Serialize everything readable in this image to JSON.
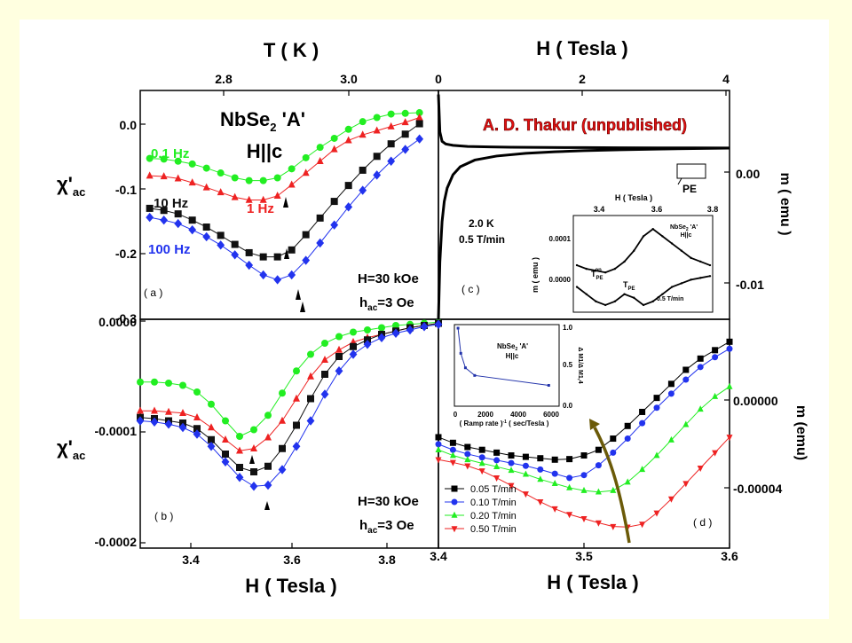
{
  "page": {
    "background": "#ffffe0",
    "frame_color": "#ffffff"
  },
  "chart_data": [
    {
      "panel": "a",
      "type": "scatter",
      "x_top_label": "T ( K )",
      "x_top_ticks": [
        "2.8",
        "3.0"
      ],
      "ylabel": "χ'ac",
      "y_ticks": [
        "0.0",
        "-0.1",
        "-0.2",
        "-0.3"
      ],
      "ylim": [
        -0.3,
        0.03
      ],
      "xlim": [
        3.3,
        3.93
      ],
      "title_main": "NbSe2 'A'",
      "title_sub": "H||c",
      "annotation_field": "H=30 kOe",
      "annotation_hac": "hac=3 Oe",
      "panel_label": "( a )",
      "series": [
        {
          "name": "0.1 Hz",
          "color": "#22ee22",
          "marker": "circle",
          "x": [
            3.32,
            3.35,
            3.38,
            3.41,
            3.44,
            3.47,
            3.5,
            3.53,
            3.56,
            3.59,
            3.62,
            3.65,
            3.68,
            3.71,
            3.74,
            3.77,
            3.8,
            3.83,
            3.86,
            3.89
          ],
          "y": [
            -0.068,
            -0.069,
            -0.072,
            -0.076,
            -0.082,
            -0.089,
            -0.096,
            -0.1,
            -0.1,
            -0.096,
            -0.083,
            -0.067,
            -0.052,
            -0.039,
            -0.026,
            -0.015,
            -0.009,
            -0.004,
            -0.003,
            -0.002
          ]
        },
        {
          "name": "1 Hz",
          "color": "#ee2222",
          "marker": "triangle",
          "x": [
            3.32,
            3.35,
            3.38,
            3.41,
            3.44,
            3.47,
            3.5,
            3.53,
            3.56,
            3.59,
            3.62,
            3.65,
            3.68,
            3.71,
            3.74,
            3.77,
            3.8,
            3.83,
            3.86,
            3.89
          ],
          "y": [
            -0.093,
            -0.094,
            -0.097,
            -0.103,
            -0.11,
            -0.117,
            -0.124,
            -0.128,
            -0.128,
            -0.122,
            -0.106,
            -0.089,
            -0.072,
            -0.055,
            -0.042,
            -0.034,
            -0.028,
            -0.022,
            -0.016,
            -0.009
          ]
        },
        {
          "name": "10 Hz",
          "color": "#111111",
          "marker": "square",
          "x": [
            3.32,
            3.35,
            3.38,
            3.41,
            3.44,
            3.47,
            3.5,
            3.53,
            3.56,
            3.59,
            3.62,
            3.65,
            3.68,
            3.71,
            3.74,
            3.77,
            3.8,
            3.83,
            3.86,
            3.89
          ],
          "y": [
            -0.14,
            -0.143,
            -0.148,
            -0.157,
            -0.167,
            -0.179,
            -0.192,
            -0.204,
            -0.21,
            -0.21,
            -0.2,
            -0.178,
            -0.154,
            -0.13,
            -0.107,
            -0.085,
            -0.065,
            -0.047,
            -0.033,
            -0.018
          ]
        },
        {
          "name": "100 Hz",
          "color": "#2233ee",
          "marker": "diamond",
          "x": [
            3.32,
            3.35,
            3.38,
            3.41,
            3.44,
            3.47,
            3.5,
            3.53,
            3.56,
            3.59,
            3.62,
            3.65,
            3.68,
            3.71,
            3.74,
            3.77,
            3.8,
            3.83,
            3.86,
            3.89
          ],
          "y": [
            -0.153,
            -0.157,
            -0.162,
            -0.171,
            -0.181,
            -0.193,
            -0.207,
            -0.222,
            -0.236,
            -0.243,
            -0.236,
            -0.215,
            -0.19,
            -0.164,
            -0.138,
            -0.114,
            -0.092,
            -0.072,
            -0.055,
            -0.04
          ]
        }
      ]
    },
    {
      "panel": "b",
      "type": "scatter",
      "xlabel": "H ( Tesla )",
      "x_ticks": [
        "3.4",
        "3.6",
        "3.8"
      ],
      "ylabel": "χ'ac",
      "y_ticks": [
        "0.0000",
        "-0.0001",
        "-0.0002"
      ],
      "ylim": [
        -0.0002,
        0.0
      ],
      "xlim": [
        3.3,
        3.93
      ],
      "annotation_field": "H=30 kOe",
      "annotation_hac": "hac=3 Oe",
      "panel_label": "( b )",
      "series": [
        {
          "name": "0.1 Hz",
          "color": "#22ee22",
          "marker": "circle",
          "x": [
            3.3,
            3.33,
            3.36,
            3.39,
            3.42,
            3.45,
            3.48,
            3.51,
            3.54,
            3.57,
            3.6,
            3.63,
            3.66,
            3.69,
            3.72,
            3.75,
            3.78,
            3.81,
            3.84,
            3.87,
            3.9,
            3.93
          ],
          "y": [
            -5.5e-05,
            -5.5e-05,
            -5.6e-05,
            -5.8e-05,
            -6.4e-05,
            -7.5e-05,
            -9e-05,
            -0.000104,
            -9.8e-05,
            -8.5e-05,
            -6.5e-05,
            -4.5e-05,
            -3e-05,
            -2e-05,
            -1.4e-05,
            -1e-05,
            -8e-06,
            -6e-06,
            -4e-06,
            -3e-06,
            -2e-06,
            -1e-06
          ]
        },
        {
          "name": "1 Hz",
          "color": "#ee2222",
          "marker": "triangle",
          "x": [
            3.3,
            3.33,
            3.36,
            3.39,
            3.42,
            3.45,
            3.48,
            3.51,
            3.54,
            3.57,
            3.6,
            3.63,
            3.66,
            3.69,
            3.72,
            3.75,
            3.78,
            3.81,
            3.84,
            3.87,
            3.9,
            3.93
          ],
          "y": [
            -8.1e-05,
            -8.1e-05,
            -8.2e-05,
            -8.3e-05,
            -8.7e-05,
            -9.6e-05,
            -0.000107,
            -0.000117,
            -0.000115,
            -0.000105,
            -9e-05,
            -7e-05,
            -5e-05,
            -3.5e-05,
            -2.6e-05,
            -1.9e-05,
            -1.5e-05,
            -1.2e-05,
            -9e-06,
            -6e-06,
            -4e-06,
            -2e-06
          ]
        },
        {
          "name": "10 Hz",
          "color": "#111111",
          "marker": "square",
          "x": [
            3.3,
            3.33,
            3.36,
            3.39,
            3.42,
            3.45,
            3.48,
            3.51,
            3.54,
            3.57,
            3.6,
            3.63,
            3.66,
            3.69,
            3.72,
            3.75,
            3.78,
            3.81,
            3.84,
            3.87,
            3.9,
            3.93
          ],
          "y": [
            -8.7e-05,
            -8.8e-05,
            -9e-05,
            -9.2e-05,
            -9.7e-05,
            -0.000107,
            -0.00012,
            -0.000132,
            -0.000136,
            -0.000131,
            -0.000115,
            -9.4e-05,
            -7e-05,
            -4.8e-05,
            -3.2e-05,
            -2.3e-05,
            -1.7e-05,
            -1.2e-05,
            -9e-06,
            -6e-06,
            -4e-06,
            -2e-06
          ]
        },
        {
          "name": "100 Hz",
          "color": "#2233ee",
          "marker": "diamond",
          "x": [
            3.3,
            3.33,
            3.36,
            3.39,
            3.42,
            3.45,
            3.48,
            3.51,
            3.54,
            3.57,
            3.6,
            3.63,
            3.66,
            3.69,
            3.72,
            3.75,
            3.78,
            3.81,
            3.84,
            3.87,
            3.9,
            3.93
          ],
          "y": [
            -9e-05,
            -9.1e-05,
            -9.3e-05,
            -9.6e-05,
            -0.000102,
            -0.000113,
            -0.000127,
            -0.000141,
            -0.000149,
            -0.000148,
            -0.000134,
            -0.000113,
            -9e-05,
            -6.6e-05,
            -4.5e-05,
            -3e-05,
            -2.1e-05,
            -1.5e-05,
            -1.1e-05,
            -8e-06,
            -5e-06,
            -3e-06
          ]
        }
      ]
    },
    {
      "panel": "c",
      "type": "line",
      "xlabel": "H ( Tesla )",
      "x_ticks": [
        "0",
        "2",
        "4"
      ],
      "ylabel": "m ( emu )",
      "y_ticks": [
        "0.00",
        "-0.01"
      ],
      "ylim": [
        -0.0128,
        0.0043
      ],
      "xlim": [
        0,
        4
      ],
      "attribution": "A. D. Thakur (unpublished)",
      "attribution_color": "#e01010",
      "annotation_temp": "2.0 K",
      "annotation_rate": "0.5 T/min",
      "marker_label": "PE",
      "panel_label": "( c )",
      "series": [
        {
          "name": "",
          "color": "#000000",
          "x": [
            0.0,
            0.02,
            0.05,
            0.1,
            0.2,
            0.4,
            0.7,
            1.0,
            1.5,
            2.0,
            2.5,
            3.0,
            3.5,
            4.0
          ],
          "y": [
            0.004,
            0.0012,
            0.0005,
            0.0003,
            0.0002,
            0.00012,
            8e-05,
            6e-05,
            4e-05,
            3e-05,
            2e-05,
            1e-05,
            5e-06,
            0.0
          ]
        },
        {
          "name": "",
          "color": "#000000",
          "x": [
            0.0,
            0.02,
            0.05,
            0.08,
            0.12,
            0.2,
            0.3,
            0.5,
            0.8,
            1.2,
            1.6,
            2.0,
            2.5,
            3.0,
            3.5,
            4.0
          ],
          "y": [
            -0.0128,
            -0.0085,
            -0.0055,
            -0.004,
            -0.003,
            -0.002,
            -0.0014,
            -0.0009,
            -0.0006,
            -0.0004,
            -0.00028,
            -0.0002,
            -0.00013,
            -8e-05,
            -4e-05,
            -1e-05
          ]
        }
      ],
      "inset": {
        "x_top_label": "H ( Tesla )",
        "x_ticks": [
          "3.4",
          "3.6",
          "3.8"
        ],
        "xlim": [
          3.3,
          3.85
        ],
        "ylabel": "m ( emu )",
        "y_ticks": [
          "0.0001",
          "0.0000"
        ],
        "title_main": "NbSe2 'A'",
        "title_sub": "H||c",
        "label_on": "TPEon",
        "label_pe": "TPE",
        "rate": "0.5 T/min",
        "upper_y": [
          2e-05,
          1e-05,
          5e-06,
          0.0,
          1e-05,
          3e-05,
          6e-05,
          0.0001,
          0.00012,
          0.0001,
          8e-05,
          6e-05,
          4e-05,
          3e-05,
          2e-05
        ],
        "lower_y": [
          -4e-05,
          -6e-05,
          -8e-05,
          -9e-05,
          -8e-05,
          -6e-05,
          -7e-05,
          -9e-05,
          -8e-05,
          -6e-05,
          -4e-05,
          -3e-05,
          -2e-05,
          -1.5e-05,
          -1e-05
        ]
      }
    },
    {
      "panel": "d",
      "type": "scatter",
      "xlabel": "H ( Tesla )",
      "x_ticks": [
        "3.4",
        "3.5",
        "3.6"
      ],
      "xlim": [
        3.4,
        3.6
      ],
      "ylabel": "m (emu)",
      "y_ticks": [
        "0.00000",
        "-0.00004"
      ],
      "ylim": [
        -5.55e-05,
        2.6e-05
      ],
      "panel_label": "( d )",
      "series": [
        {
          "name": "0.05 T/min",
          "color": "#000000",
          "marker": "square",
          "x": [
            3.4,
            3.41,
            3.42,
            3.43,
            3.44,
            3.45,
            3.46,
            3.47,
            3.48,
            3.49,
            3.5,
            3.51,
            3.52,
            3.53,
            3.54,
            3.55,
            3.56,
            3.57,
            3.58,
            3.59,
            3.6
          ],
          "y": [
            -1.6e-05,
            -1.8e-05,
            -1.95e-05,
            -2.05e-05,
            -2.15e-05,
            -2.25e-05,
            -2.3e-05,
            -2.35e-05,
            -2.4e-05,
            -2.38e-05,
            -2.25e-05,
            -2.05e-05,
            -1.65e-05,
            -1.2e-05,
            -7e-06,
            -2e-06,
            3e-06,
            8e-06,
            1.2e-05,
            1.5e-05,
            1.8e-05
          ]
        },
        {
          "name": "0.10 T/min",
          "color": "#2233ee",
          "marker": "circle",
          "x": [
            3.4,
            3.41,
            3.42,
            3.43,
            3.44,
            3.45,
            3.46,
            3.47,
            3.48,
            3.49,
            3.5,
            3.51,
            3.52,
            3.53,
            3.54,
            3.55,
            3.56,
            3.57,
            3.58,
            3.59,
            3.6
          ],
          "y": [
            -1.85e-05,
            -2.05e-05,
            -2.2e-05,
            -2.32e-05,
            -2.42e-05,
            -2.52e-05,
            -2.62e-05,
            -2.75e-05,
            -2.9e-05,
            -3.05e-05,
            -2.95e-05,
            -2.6e-05,
            -2.15e-05,
            -1.65e-05,
            -1.1e-05,
            -5.5e-06,
            -5e-07,
            4.5e-06,
            9e-06,
            1.25e-05,
            1.55e-05
          ]
        },
        {
          "name": "0.20 T/min",
          "color": "#22ee22",
          "marker": "triangle",
          "x": [
            3.4,
            3.41,
            3.42,
            3.43,
            3.44,
            3.45,
            3.46,
            3.47,
            3.48,
            3.49,
            3.5,
            3.51,
            3.52,
            3.53,
            3.54,
            3.55,
            3.56,
            3.57,
            3.58,
            3.59,
            3.6
          ],
          "y": [
            -2.05e-05,
            -2.25e-05,
            -2.4e-05,
            -2.53e-05,
            -2.65e-05,
            -2.78e-05,
            -2.92e-05,
            -3.1e-05,
            -3.25e-05,
            -3.4e-05,
            -3.5e-05,
            -3.55e-05,
            -3.5e-05,
            -3.2e-05,
            -2.75e-05,
            -2.25e-05,
            -1.7e-05,
            -1.15e-05,
            -6e-06,
            -1.5e-06,
            2e-06
          ]
        },
        {
          "name": "0.50 T/min",
          "color": "#ee2222",
          "marker": "triangle-down",
          "x": [
            3.4,
            3.41,
            3.42,
            3.43,
            3.44,
            3.45,
            3.46,
            3.47,
            3.48,
            3.49,
            3.5,
            3.51,
            3.52,
            3.53,
            3.54,
            3.55,
            3.56,
            3.57,
            3.58,
            3.59,
            3.6
          ],
          "y": [
            -2.4e-05,
            -2.5e-05,
            -2.62e-05,
            -2.8e-05,
            -3.05e-05,
            -3.32e-05,
            -3.62e-05,
            -3.9e-05,
            -4.15e-05,
            -4.35e-05,
            -4.5e-05,
            -4.65e-05,
            -4.78e-05,
            -4.8e-05,
            -4.7e-05,
            -4.3e-05,
            -3.8e-05,
            -3.25e-05,
            -2.7e-05,
            -2.15e-05,
            -1.6e-05
          ]
        }
      ],
      "inset": {
        "title_main": "NbSe2 'A'",
        "title_sub": "H||c",
        "xlabel": "( Ramp rate )-1 ( sec/Tesla )",
        "x_ticks": [
          "0",
          "2000",
          "4000",
          "6000"
        ],
        "xlim": [
          0,
          6500
        ],
        "ylabel": "Δ M1/Δ M1,4",
        "y_ticks": [
          "0.0",
          "0.5",
          "1.0"
        ],
        "ylim": [
          0,
          1
        ],
        "x": [
          120,
          300,
          600,
          1200,
          6000
        ],
        "y": [
          1.0,
          0.67,
          0.48,
          0.38,
          0.25
        ]
      }
    }
  ]
}
